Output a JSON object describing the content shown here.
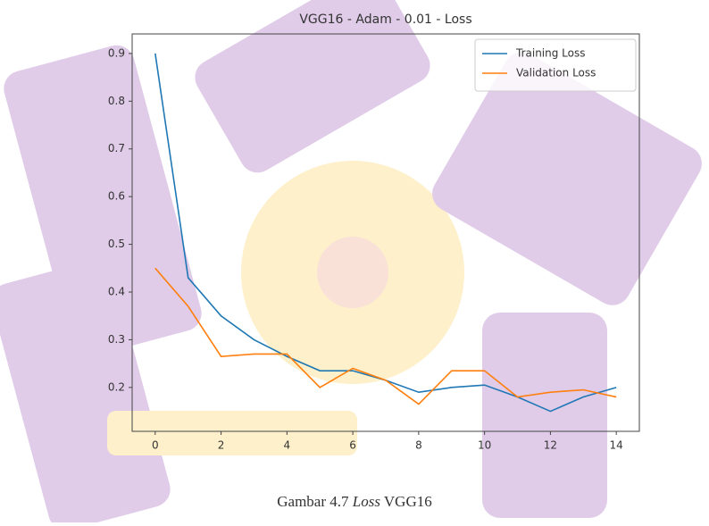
{
  "chart_data": {
    "type": "line",
    "title": "VGG16 - Adam - 0.01 - Loss",
    "x": [
      0,
      1,
      2,
      3,
      4,
      5,
      6,
      7,
      8,
      9,
      10,
      11,
      12,
      13,
      14
    ],
    "series": [
      {
        "name": "Training Loss",
        "color": "#1f77b4",
        "values": [
          0.9,
          0.43,
          0.35,
          0.3,
          0.265,
          0.235,
          0.235,
          0.215,
          0.19,
          0.2,
          0.205,
          0.18,
          0.15,
          0.18,
          0.2
        ]
      },
      {
        "name": "Validation Loss",
        "color": "#ff7f0e",
        "values": [
          0.45,
          0.37,
          0.265,
          0.27,
          0.27,
          0.2,
          0.24,
          0.215,
          0.165,
          0.235,
          0.235,
          0.18,
          0.19,
          0.195,
          0.18
        ]
      }
    ],
    "xlim": [
      -0.7,
      14.7
    ],
    "xticks": [
      0,
      2,
      4,
      6,
      8,
      10,
      12,
      14
    ],
    "ylim": [
      0.108,
      0.941
    ],
    "yticks": [
      0.2,
      0.3,
      0.4,
      0.5,
      0.6,
      0.7,
      0.8,
      0.9
    ],
    "legend": "upper right"
  },
  "caption": [
    "Gambar 4.7",
    "Loss",
    "VGG16"
  ]
}
